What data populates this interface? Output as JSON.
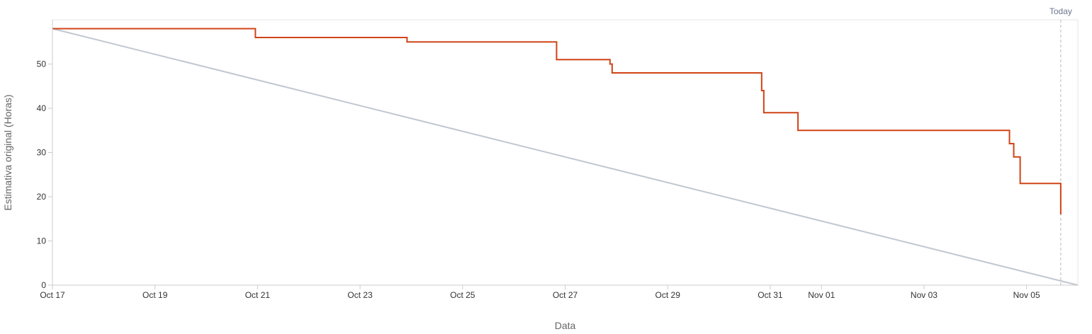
{
  "chart_data": {
    "type": "line",
    "title": "",
    "xlabel": "Data",
    "ylabel": "Estimativa original (Horas)",
    "x_tick_labels": [
      "Oct 17",
      "Oct 19",
      "Oct 21",
      "Oct 23",
      "Oct 25",
      "Oct 27",
      "Oct 29",
      "Oct 31",
      "Nov 01",
      "Nov 03",
      "Nov 05"
    ],
    "x_tick_dates": [
      "2023-10-17",
      "2023-10-19",
      "2023-10-21",
      "2023-10-23",
      "2023-10-25",
      "2023-10-27",
      "2023-10-29",
      "2023-10-31",
      "2023-11-01",
      "2023-11-03",
      "2023-11-05"
    ],
    "y_ticks": [
      0,
      10,
      20,
      30,
      40,
      50
    ],
    "xlim": [
      "2023-10-17T00:00",
      "2023-11-06T00:00"
    ],
    "ylim": [
      0,
      60
    ],
    "grid": false,
    "today_label": "Today",
    "today_date": "2023-11-05T16:00",
    "colors": {
      "remaining": "#d04316",
      "guideline": "#c1c7d0",
      "today": "#b3bac5",
      "axis": "#cccccc"
    },
    "series": [
      {
        "style": "step",
        "points": [
          [
            "2023-10-17T00:00",
            58
          ],
          [
            "2023-10-20T23:00",
            56
          ],
          [
            "2023-10-23T22:00",
            55
          ],
          [
            "2023-10-26T20:00",
            51
          ],
          [
            "2023-10-27T21:00",
            50
          ],
          [
            "2023-10-27T22:00",
            48
          ],
          [
            "2023-10-30T20:00",
            44
          ],
          [
            "2023-10-30T21:00",
            39
          ],
          [
            "2023-10-31T13:00",
            35
          ],
          [
            "2023-11-04T16:00",
            32
          ],
          [
            "2023-11-04T18:00",
            29
          ],
          [
            "2023-11-04T21:00",
            23
          ],
          [
            "2023-11-05T16:00",
            16
          ]
        ]
      },
      {
        "style": "linear",
        "points": [
          [
            "2023-10-17T00:00",
            58
          ],
          [
            "2023-11-06T00:00",
            0
          ]
        ]
      }
    ]
  }
}
